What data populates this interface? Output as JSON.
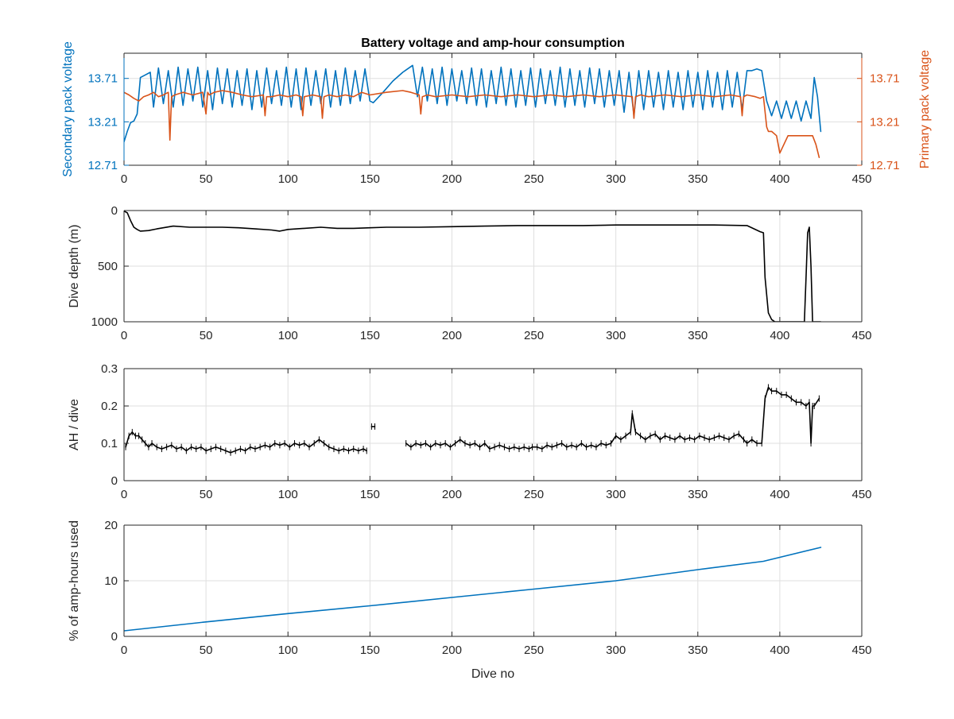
{
  "figure": {
    "background": "#ffffff",
    "axes_color": "#262626",
    "grid_color": "#dfdfdf"
  },
  "chart_data": [
    {
      "type": "line",
      "title": "Battery voltage and amp-hour consumption",
      "xlabel": "",
      "ylabel": "Secondary pack voltage",
      "ylabel_right": "Primary pack voltage",
      "xlim": [
        0,
        450
      ],
      "ylim": [
        12.71,
        14.0
      ],
      "ylim_right": [
        12.71,
        14.0
      ],
      "xticks": [
        0,
        50,
        100,
        150,
        200,
        250,
        300,
        350,
        400,
        450
      ],
      "yticks": [
        12.71,
        13.21,
        13.71
      ],
      "ytick_labels": [
        "12.71",
        "13.21",
        "13.71"
      ],
      "yticks_right": [
        12.71,
        13.21,
        13.71
      ],
      "ytick_labels_right": [
        "12.71",
        "13.21",
        "13.71"
      ],
      "grid": true,
      "left_color": "#0072BD",
      "right_color": "#D95319",
      "series": [
        {
          "axis": "left",
          "color": "#0072BD",
          "x": [
            0,
            2,
            4,
            6,
            8,
            10,
            13,
            16,
            18,
            21,
            24,
            27,
            30,
            33,
            36,
            39,
            42,
            45,
            48,
            51,
            54,
            57,
            60,
            63,
            66,
            69,
            72,
            75,
            78,
            81,
            84,
            87,
            90,
            93,
            96,
            99,
            102,
            105,
            108,
            111,
            114,
            117,
            120,
            123,
            126,
            129,
            132,
            135,
            138,
            141,
            144,
            147,
            150,
            152,
            158,
            164,
            170,
            176,
            179,
            182,
            185,
            188,
            191,
            194,
            197,
            200,
            203,
            206,
            209,
            212,
            215,
            218,
            221,
            224,
            227,
            230,
            233,
            236,
            239,
            242,
            245,
            248,
            251,
            254,
            257,
            260,
            263,
            266,
            269,
            272,
            275,
            278,
            281,
            284,
            287,
            290,
            293,
            296,
            299,
            302,
            305,
            308,
            311,
            314,
            317,
            320,
            323,
            326,
            329,
            332,
            335,
            338,
            341,
            344,
            347,
            350,
            353,
            356,
            359,
            362,
            365,
            368,
            371,
            374,
            377,
            380,
            383,
            386,
            389,
            392,
            395,
            398,
            401,
            404,
            407,
            410,
            413,
            416,
            419,
            421,
            423,
            425
          ],
          "values": [
            12.98,
            13.1,
            13.2,
            13.22,
            13.3,
            13.72,
            13.75,
            13.78,
            13.38,
            13.83,
            13.42,
            13.8,
            13.38,
            13.84,
            13.4,
            13.82,
            13.45,
            13.84,
            13.38,
            13.8,
            13.35,
            13.83,
            13.42,
            13.82,
            13.38,
            13.8,
            13.4,
            13.82,
            13.35,
            13.8,
            13.38,
            13.83,
            13.42,
            13.8,
            13.4,
            13.84,
            13.38,
            13.82,
            13.35,
            13.83,
            13.4,
            13.8,
            13.42,
            13.82,
            13.38,
            13.8,
            13.4,
            13.83,
            13.42,
            13.8,
            13.45,
            13.82,
            13.45,
            13.43,
            13.55,
            13.68,
            13.78,
            13.86,
            13.5,
            13.84,
            13.45,
            13.82,
            13.42,
            13.84,
            13.4,
            13.82,
            13.45,
            13.8,
            13.42,
            13.83,
            13.4,
            13.82,
            13.38,
            13.8,
            13.42,
            13.84,
            13.4,
            13.82,
            13.38,
            13.8,
            13.4,
            13.83,
            13.38,
            13.82,
            13.42,
            13.8,
            13.4,
            13.84,
            13.38,
            13.82,
            13.4,
            13.8,
            13.38,
            13.83,
            13.42,
            13.82,
            13.38,
            13.8,
            13.4,
            13.8,
            13.32,
            13.78,
            13.28,
            13.8,
            13.35,
            13.8,
            13.38,
            13.78,
            13.35,
            13.8,
            13.38,
            13.78,
            13.35,
            13.8,
            13.38,
            13.78,
            13.35,
            13.8,
            13.38,
            13.78,
            13.35,
            13.8,
            13.38,
            13.78,
            13.35,
            13.8,
            13.8,
            13.82,
            13.8,
            13.45,
            13.28,
            13.45,
            13.25,
            13.45,
            13.25,
            13.45,
            13.22,
            13.45,
            13.25,
            13.72,
            13.5,
            13.1
          ]
        },
        {
          "axis": "right",
          "color": "#D95319",
          "x": [
            0,
            3,
            6,
            9,
            12,
            15,
            18,
            21,
            24,
            27,
            28,
            29,
            31,
            36,
            42,
            48,
            50,
            51,
            52,
            55,
            60,
            66,
            72,
            78,
            85,
            86,
            87,
            90,
            95,
            100,
            105,
            108,
            109,
            110,
            115,
            120,
            121,
            122,
            125,
            130,
            135,
            140,
            145,
            150,
            160,
            170,
            175,
            180,
            181,
            182,
            185,
            190,
            200,
            210,
            220,
            230,
            240,
            250,
            260,
            270,
            280,
            290,
            300,
            310,
            311,
            312,
            315,
            320,
            330,
            340,
            350,
            360,
            370,
            376,
            377,
            378,
            380,
            385,
            388,
            390,
            392,
            393,
            395,
            398,
            400,
            405,
            410,
            415,
            420,
            422,
            424
          ],
          "values": [
            13.55,
            13.52,
            13.48,
            13.45,
            13.5,
            13.52,
            13.55,
            13.5,
            13.52,
            13.55,
            13.0,
            13.5,
            13.52,
            13.55,
            13.52,
            13.55,
            13.3,
            13.55,
            13.52,
            13.55,
            13.57,
            13.55,
            13.52,
            13.5,
            13.52,
            13.28,
            13.5,
            13.5,
            13.52,
            13.5,
            13.52,
            13.5,
            13.28,
            13.5,
            13.52,
            13.5,
            13.25,
            13.5,
            13.52,
            13.5,
            13.52,
            13.5,
            13.55,
            13.52,
            13.55,
            13.57,
            13.55,
            13.52,
            13.3,
            13.5,
            13.52,
            13.5,
            13.52,
            13.5,
            13.52,
            13.5,
            13.52,
            13.5,
            13.52,
            13.5,
            13.52,
            13.5,
            13.52,
            13.5,
            13.25,
            13.5,
            13.52,
            13.5,
            13.52,
            13.5,
            13.52,
            13.5,
            13.52,
            13.5,
            13.28,
            13.5,
            13.52,
            13.5,
            13.48,
            13.5,
            13.15,
            13.1,
            13.1,
            13.05,
            12.85,
            13.05,
            13.05,
            13.05,
            13.05,
            12.95,
            12.8
          ]
        }
      ]
    },
    {
      "type": "line",
      "title": "",
      "xlabel": "",
      "ylabel": "Dive depth (m)",
      "xlim": [
        0,
        450
      ],
      "ylim": [
        0,
        1000
      ],
      "y_reversed": true,
      "xticks": [
        0,
        50,
        100,
        150,
        200,
        250,
        300,
        350,
        400,
        450
      ],
      "yticks": [
        0,
        500,
        1000
      ],
      "grid": true,
      "series": [
        {
          "color": "#000000",
          "x": [
            0,
            2,
            4,
            6,
            8,
            10,
            15,
            20,
            30,
            40,
            50,
            60,
            70,
            80,
            90,
            95,
            100,
            110,
            120,
            130,
            140,
            150,
            160,
            170,
            180,
            200,
            220,
            240,
            260,
            280,
            300,
            320,
            340,
            360,
            380,
            388,
            390,
            391,
            393,
            395,
            397,
            400,
            410,
            415,
            416,
            417,
            418,
            419,
            420,
            421,
            422,
            425
          ],
          "values": [
            5,
            20,
            90,
            150,
            170,
            185,
            180,
            165,
            140,
            150,
            150,
            150,
            155,
            165,
            175,
            185,
            170,
            160,
            150,
            160,
            160,
            155,
            150,
            150,
            150,
            145,
            140,
            135,
            135,
            135,
            130,
            130,
            130,
            130,
            135,
            190,
            200,
            600,
            920,
            980,
            1000,
            1000,
            1000,
            1000,
            600,
            200,
            150,
            500,
            1000,
            1000,
            1000,
            1000
          ]
        }
      ]
    },
    {
      "type": "line",
      "title": "",
      "xlabel": "",
      "ylabel": "AH / dive",
      "xlim": [
        0,
        450
      ],
      "ylim": [
        0,
        0.3
      ],
      "xticks": [
        0,
        50,
        100,
        150,
        200,
        250,
        300,
        350,
        400,
        450
      ],
      "yticks": [
        0,
        0.1,
        0.2,
        0.3
      ],
      "grid": true,
      "series": [
        {
          "color": "#000000",
          "segments": [
            {
              "x": [
                1,
                3,
                5,
                7,
                9,
                11,
                13,
                15,
                17,
                20,
                23,
                26,
                29,
                32,
                35,
                38,
                41,
                44,
                47,
                50,
                53,
                56,
                59,
                62,
                65,
                68,
                71,
                74,
                77,
                80,
                83,
                86,
                89,
                92,
                95,
                98,
                101,
                104,
                107,
                110,
                113,
                116,
                119,
                122,
                125,
                128,
                131,
                134,
                137,
                140,
                143,
                146,
                148
              ],
              "values": [
                0.09,
                0.12,
                0.13,
                0.12,
                0.12,
                0.11,
                0.1,
                0.09,
                0.1,
                0.09,
                0.085,
                0.09,
                0.095,
                0.085,
                0.09,
                0.08,
                0.09,
                0.085,
                0.09,
                0.08,
                0.085,
                0.09,
                0.085,
                0.08,
                0.075,
                0.08,
                0.085,
                0.08,
                0.09,
                0.085,
                0.09,
                0.095,
                0.09,
                0.1,
                0.095,
                0.1,
                0.09,
                0.1,
                0.095,
                0.1,
                0.09,
                0.1,
                0.11,
                0.1,
                0.09,
                0.085,
                0.08,
                0.085,
                0.08,
                0.085,
                0.08,
                0.085,
                0.08
              ]
            },
            {
              "x": [
                151,
                153
              ],
              "values": [
                0.145,
                0.145
              ]
            },
            {
              "x": [
                172,
                175,
                178,
                181,
                184,
                187,
                190,
                193,
                196,
                199,
                202,
                205,
                208,
                211,
                214,
                217,
                220,
                223,
                226,
                229,
                232,
                235,
                238,
                241,
                244,
                247,
                249,
                252,
                255,
                258,
                261,
                264,
                267,
                270,
                273,
                276,
                279,
                282,
                285,
                288,
                291,
                294,
                297,
                300,
                303,
                306,
                309,
                310,
                312,
                315,
                318,
                321,
                324,
                327,
                330,
                333,
                336,
                339,
                342,
                345,
                348,
                351,
                354,
                357,
                360,
                363,
                366,
                369,
                372,
                375,
                378,
                380,
                383,
                386,
                389,
                391,
                393,
                395,
                398,
                401,
                404,
                407,
                410,
                413,
                416,
                418,
                419,
                420,
                421,
                424
              ],
              "values": [
                0.1,
                0.09,
                0.1,
                0.095,
                0.1,
                0.09,
                0.1,
                0.095,
                0.1,
                0.09,
                0.1,
                0.11,
                0.1,
                0.095,
                0.1,
                0.09,
                0.1,
                0.085,
                0.09,
                0.095,
                0.09,
                0.085,
                0.09,
                0.085,
                0.09,
                0.085,
                0.09,
                0.09,
                0.085,
                0.095,
                0.09,
                0.095,
                0.1,
                0.09,
                0.095,
                0.09,
                0.1,
                0.09,
                0.095,
                0.09,
                0.1,
                0.095,
                0.1,
                0.12,
                0.11,
                0.12,
                0.13,
                0.18,
                0.13,
                0.12,
                0.11,
                0.12,
                0.125,
                0.11,
                0.12,
                0.115,
                0.11,
                0.12,
                0.11,
                0.115,
                0.11,
                0.12,
                0.115,
                0.11,
                0.115,
                0.12,
                0.115,
                0.11,
                0.12,
                0.125,
                0.11,
                0.1,
                0.11,
                0.1,
                0.1,
                0.22,
                0.25,
                0.24,
                0.24,
                0.23,
                0.23,
                0.22,
                0.21,
                0.21,
                0.2,
                0.21,
                0.1,
                0.2,
                0.2,
                0.22
              ]
            }
          ]
        }
      ]
    },
    {
      "type": "line",
      "title": "",
      "xlabel": "Dive no",
      "ylabel": "% of amp-hours used",
      "xlim": [
        0,
        450
      ],
      "ylim": [
        0,
        20
      ],
      "xticks": [
        0,
        50,
        100,
        150,
        200,
        250,
        300,
        350,
        400,
        450
      ],
      "yticks": [
        0,
        10,
        20
      ],
      "grid": true,
      "series": [
        {
          "color": "#0072BD",
          "x": [
            0,
            50,
            100,
            150,
            200,
            250,
            300,
            350,
            390,
            425
          ],
          "values": [
            1.0,
            2.6,
            4.1,
            5.5,
            7.0,
            8.5,
            10.0,
            12.0,
            13.5,
            16.0
          ]
        }
      ]
    }
  ]
}
